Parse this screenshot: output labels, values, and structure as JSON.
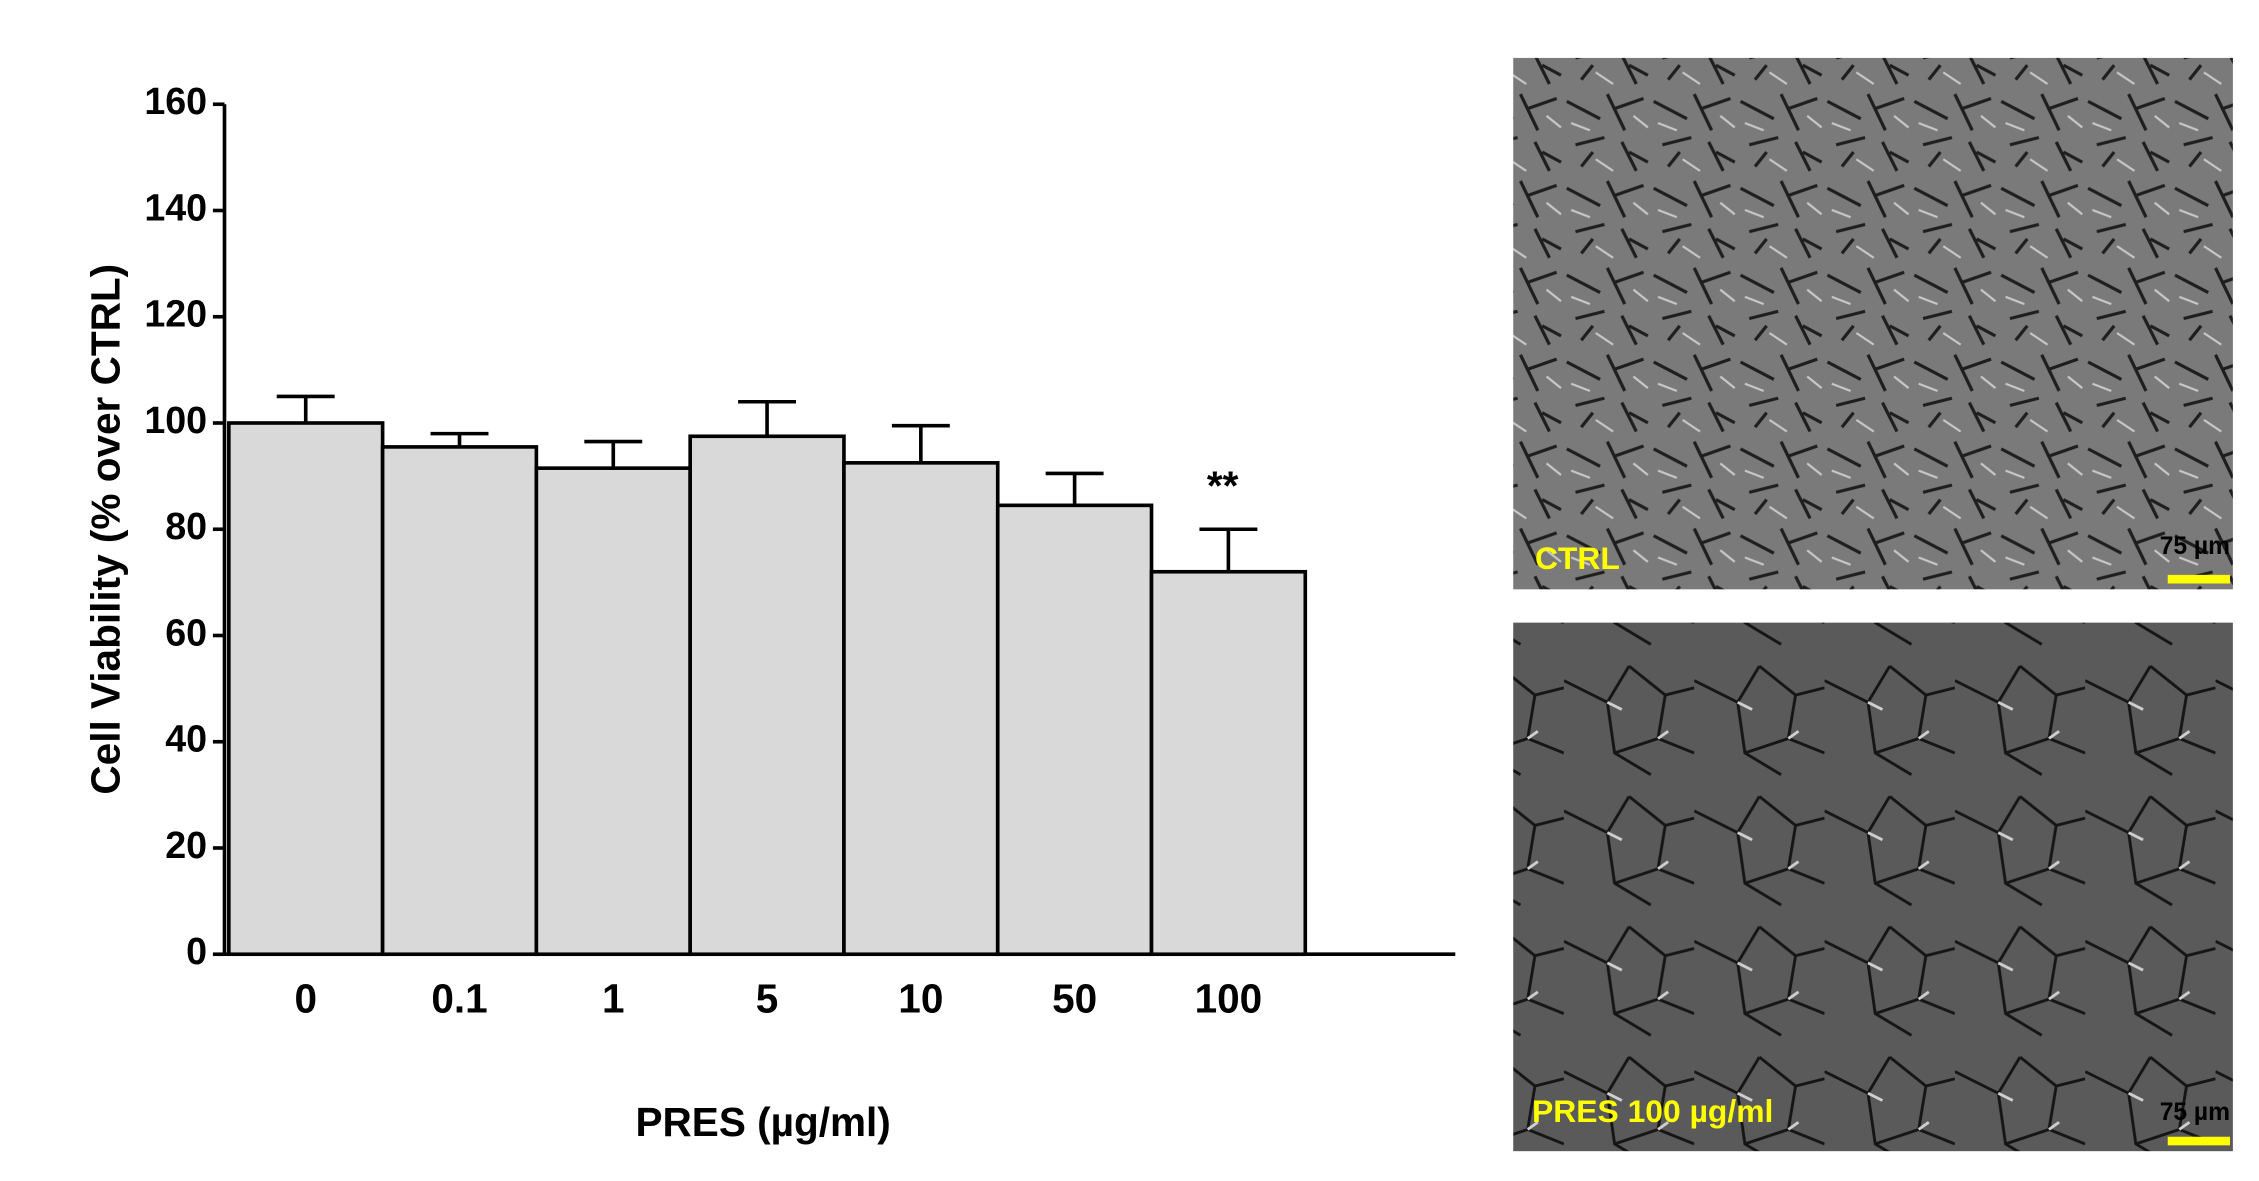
{
  "chart_data": {
    "type": "bar",
    "x_label": "PRES (µg/ml)",
    "y_label": "Cell Viability (% over CTRL)",
    "categories": [
      "0",
      "0.1",
      "1",
      "5",
      "10",
      "50",
      "100"
    ],
    "values": [
      100,
      95.5,
      91.5,
      97.5,
      92.5,
      84.5,
      72
    ],
    "errors": [
      5,
      2.5,
      5,
      6.5,
      7,
      6,
      8
    ],
    "color": "#d9d9d9",
    "ylim": [
      0,
      160
    ],
    "yticks": [
      0,
      20,
      40,
      60,
      80,
      100,
      120,
      140,
      160
    ],
    "annotations": [
      {
        "text": "**",
        "x": "100"
      }
    ]
  },
  "panels": [
    {
      "label": "CTRL",
      "scale_bar": "75 µm"
    },
    {
      "label": "PRES 100 µg/ml",
      "scale_bar": "75 µm"
    }
  ]
}
